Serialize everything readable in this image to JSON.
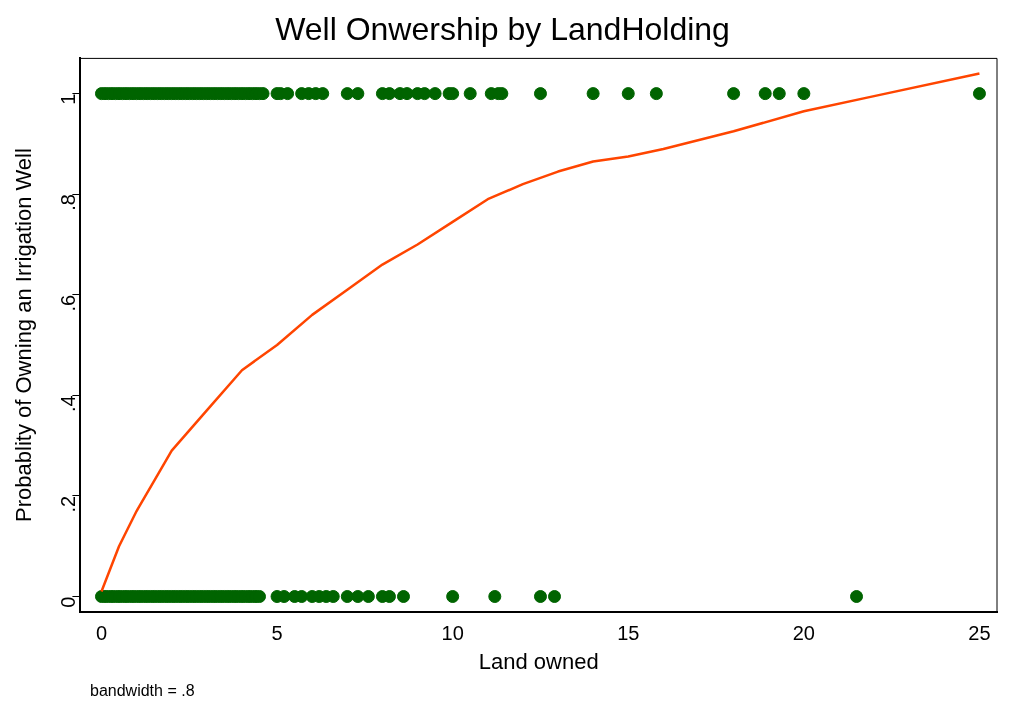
{
  "chart_data": {
    "type": "scatter",
    "title": "Well Onwership by LandHolding",
    "xlabel": "Land owned",
    "ylabel": "Probablity of Owning an Irrigation Well",
    "annotations": [
      "bandwidth = .8"
    ],
    "xlim": [
      -0.6,
      25.5
    ],
    "xticks": [
      0,
      5,
      10,
      15,
      20,
      25
    ],
    "ylim": [
      -0.03,
      1.07
    ],
    "yticks": [
      0,
      {
        "value": 0.2,
        "label": ".2"
      },
      {
        "value": 0.4,
        "label": ".4"
      },
      {
        "value": 0.6,
        "label": ".6"
      },
      {
        "value": 0.8,
        "label": ".8"
      },
      1
    ],
    "grid": false,
    "legend": false,
    "marker": "circle",
    "series": [
      {
        "color": "#006400",
        "x": [
          0,
          0.1,
          0.2,
          0.3,
          0.4,
          0.5,
          0.6,
          0.7,
          0.8,
          0.9,
          1,
          1.1,
          1.2,
          1.3,
          1.4,
          1.5,
          1.6,
          1.7,
          1.8,
          1.9,
          2,
          2.1,
          2.2,
          2.3,
          2.4,
          2.5,
          2.6,
          2.7,
          2.8,
          2.9,
          3,
          3.1,
          3.2,
          3.3,
          3.4,
          3.5,
          3.6,
          3.7,
          3.8,
          3.9,
          4,
          4.1,
          4.2,
          4.3,
          4.4,
          4.5,
          4.6,
          5,
          5.1,
          5.3,
          5.7,
          5.9,
          6.1,
          6.3,
          7,
          7.3,
          8,
          8.2,
          8.5,
          8.7,
          9,
          9.2,
          9.5,
          9.9,
          10,
          10.5,
          11.1,
          11.3,
          11.4,
          12.5,
          14,
          15,
          15.8,
          18,
          18.9,
          19.3,
          20,
          25
        ],
        "values": [
          1,
          1,
          1,
          1,
          1,
          1,
          1,
          1,
          1,
          1,
          1,
          1,
          1,
          1,
          1,
          1,
          1,
          1,
          1,
          1,
          1,
          1,
          1,
          1,
          1,
          1,
          1,
          1,
          1,
          1,
          1,
          1,
          1,
          1,
          1,
          1,
          1,
          1,
          1,
          1,
          1,
          1,
          1,
          1,
          1,
          1,
          1,
          1,
          1,
          1,
          1,
          1,
          1,
          1,
          1,
          1,
          1,
          1,
          1,
          1,
          1,
          1,
          1,
          1,
          1,
          1,
          1,
          1,
          1,
          1,
          1,
          1,
          1,
          1,
          1,
          1,
          1,
          1
        ]
      },
      {
        "color": "#006400",
        "x": [
          0,
          0.1,
          0.2,
          0.3,
          0.4,
          0.5,
          0.6,
          0.7,
          0.8,
          0.9,
          1,
          1.1,
          1.2,
          1.3,
          1.4,
          1.5,
          1.6,
          1.7,
          1.8,
          1.9,
          2,
          2.1,
          2.2,
          2.3,
          2.4,
          2.5,
          2.6,
          2.7,
          2.8,
          2.9,
          3,
          3.1,
          3.2,
          3.3,
          3.4,
          3.5,
          3.6,
          3.7,
          3.8,
          3.9,
          4,
          4.1,
          4.2,
          4.3,
          4.4,
          4.5,
          5,
          5.2,
          5.5,
          5.7,
          6,
          6.2,
          6.4,
          6.6,
          7,
          7.3,
          7.6,
          8,
          8.2,
          8.6,
          10,
          11.2,
          12.5,
          12.9,
          21.5
        ],
        "values": [
          0,
          0,
          0,
          0,
          0,
          0,
          0,
          0,
          0,
          0,
          0,
          0,
          0,
          0,
          0,
          0,
          0,
          0,
          0,
          0,
          0,
          0,
          0,
          0,
          0,
          0,
          0,
          0,
          0,
          0,
          0,
          0,
          0,
          0,
          0,
          0,
          0,
          0,
          0,
          0,
          0,
          0,
          0,
          0,
          0,
          0,
          0,
          0,
          0,
          0,
          0,
          0,
          0,
          0,
          0,
          0,
          0,
          0,
          0,
          0,
          0,
          0,
          0,
          0,
          0
        ]
      },
      {
        "type": "line",
        "color": "#ff4500",
        "marker": "none",
        "x": [
          0,
          0.5,
          1,
          1.5,
          2,
          3,
          4,
          5,
          6,
          7,
          8,
          9,
          10,
          11,
          12,
          13,
          14,
          15,
          16,
          18,
          20,
          22,
          25
        ],
        "values": [
          0.01,
          0.1,
          0.17,
          0.23,
          0.29,
          0.37,
          0.45,
          0.5,
          0.56,
          0.61,
          0.66,
          0.7,
          0.745,
          0.79,
          0.82,
          0.845,
          0.865,
          0.875,
          0.89,
          0.925,
          0.965,
          0.995,
          1.04
        ]
      }
    ]
  }
}
